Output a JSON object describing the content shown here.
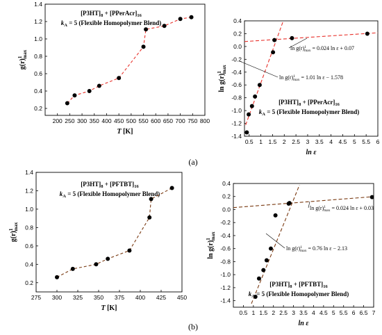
{
  "captions": [
    "(a)",
    "(b)"
  ],
  "chart_data": [
    {
      "type": "line",
      "title_lines": [
        {
          "text": "[P3HT]",
          "sub": "8",
          "text2": " + [PPerAcr]",
          "sub2": "16"
        },
        {
          "kvar": "k",
          "ksub": "A",
          "text": " = 5 (Flexible Homopolymer Blend)"
        }
      ],
      "xlabel": {
        "main": "T",
        "unit": " [K]"
      },
      "ylabel": {
        "main": "g(r)",
        "sup": "1",
        "sub": "max"
      },
      "xlim": [
        150,
        800
      ],
      "ylim": [
        0.12,
        1.4
      ],
      "xticks": [
        200,
        250,
        300,
        350,
        400,
        450,
        500,
        550,
        600,
        650,
        700,
        750,
        800
      ],
      "yticks": [
        0.2,
        0.4,
        0.6,
        0.8,
        1.0,
        1.2,
        1.4
      ],
      "ytick_labels": [
        "0.2",
        "0.4",
        "0.6",
        "0.8",
        "1.0",
        "1.2",
        "1.4"
      ],
      "series": [
        {
          "x": [
            240,
            270,
            330,
            370,
            450,
            550,
            560,
            635,
            700,
            745
          ],
          "y": [
            0.26,
            0.35,
            0.4,
            0.46,
            0.55,
            0.91,
            1.11,
            1.15,
            1.23,
            1.25
          ]
        }
      ],
      "line_color": "#e8302a",
      "marker_color": "#000000"
    },
    {
      "type": "scatter",
      "title_lines": [
        {
          "text": "[P3HT]",
          "sub": "8",
          "text2": " + [PPerAcr]",
          "sub2": "16"
        },
        {
          "kvar": "k",
          "ksub": "A",
          "text": " = 5 (Flexible Homopolymer Blend)"
        }
      ],
      "xlabel": {
        "main": "ln ε",
        "unit": ""
      },
      "ylabel": {
        "main": "ln g(r)",
        "sup": "1",
        "sub": "max"
      },
      "xlim": [
        0.3,
        6.0
      ],
      "ylim": [
        -1.4,
        0.4
      ],
      "xticks": [
        0.5,
        1.0,
        1.5,
        2.0,
        2.5,
        3.0,
        3.5,
        4.0,
        4.5,
        5.0,
        5.5,
        6.0
      ],
      "yticks": [
        -1.4,
        -1.2,
        -1.0,
        -0.8,
        -0.6,
        -0.4,
        -0.2,
        0.0,
        0.2,
        0.4
      ],
      "ytick_labels": [
        "-1.4",
        "-1.2",
        "-1.0",
        "-0.8",
        "-0.6",
        "-0.4",
        "-0.2",
        "0.0",
        "0.2",
        "0.4"
      ],
      "series": [
        {
          "x": [
            0.4,
            0.48,
            0.62,
            0.75,
            0.95,
            1.52,
            1.58,
            2.33,
            5.55
          ],
          "y": [
            -1.34,
            -1.06,
            -0.93,
            -0.78,
            -0.6,
            -0.09,
            0.1,
            0.13,
            0.2
          ]
        }
      ],
      "fit_lines": [
        {
          "slope": 1.01,
          "intercept": -1.578,
          "x_range": [
            0.35,
            1.98
          ],
          "label": {
            "pre": "ln g(r)",
            "sup": "1",
            "sub": "max",
            "post": " = 1.01 ln ε − 1.578"
          }
        },
        {
          "slope": 0.024,
          "intercept": 0.07,
          "x_range": [
            0.3,
            6.0
          ],
          "label": {
            "pre": "ln g(r)",
            "sup": "1",
            "sub": "max",
            "post": " = 0.024 ln ε + 0.07"
          }
        }
      ],
      "line_color": "#e8302a",
      "marker_color": "#000000"
    },
    {
      "type": "line",
      "title_lines": [
        {
          "text": "[P3HT]",
          "sub": "8",
          "text2": " + [PFTBT]",
          "sub2": "16"
        },
        {
          "kvar": "k",
          "ksub": "A",
          "text": " = 5 (Flexible Homopolymer Blend)"
        }
      ],
      "xlabel": {
        "main": "T",
        "unit": " [K]"
      },
      "ylabel": {
        "main": "g(r)",
        "sup": "1",
        "sub": "max"
      },
      "xlim": [
        275,
        450
      ],
      "ylim": [
        0.1,
        1.4
      ],
      "xticks": [
        275,
        300,
        325,
        350,
        375,
        400,
        425,
        450
      ],
      "yticks": [
        0.2,
        0.4,
        0.6,
        0.8,
        1.0,
        1.2,
        1.4
      ],
      "ytick_labels": [
        "0.2",
        "0.4",
        "0.6",
        "0.8",
        "1.0",
        "1.2",
        "1.4"
      ],
      "series": [
        {
          "x": [
            300,
            319,
            347,
            361,
            387,
            411,
            413,
            438
          ],
          "y": [
            0.26,
            0.35,
            0.4,
            0.46,
            0.55,
            0.91,
            1.11,
            1.23
          ]
        }
      ],
      "line_color": "#7a3a12",
      "marker_color": "#000000"
    },
    {
      "type": "scatter",
      "title_lines": [
        {
          "text": "[P3HT]",
          "sub": "8",
          "text2": " + [PFTBT]",
          "sub2": "16"
        },
        {
          "kvar": "k",
          "ksub": "A",
          "text": " = 5 (Flexible Homopolymer Blend)"
        }
      ],
      "xlabel": {
        "main": "ln ε",
        "unit": ""
      },
      "ylabel": {
        "main": "ln g(r)",
        "sup": "1",
        "sub": "max"
      },
      "xlim": [
        0.0,
        7.0
      ],
      "ylim": [
        -1.5,
        0.4
      ],
      "xticks": [
        0.5,
        1.0,
        1.5,
        2.0,
        2.5,
        3.0,
        3.5,
        4.0,
        4.5,
        5.0,
        5.5,
        6.0,
        6.5,
        7.0
      ],
      "yticks": [
        -1.4,
        -1.2,
        -1.0,
        -0.8,
        -0.6,
        -0.4,
        -0.2,
        0.0,
        0.2,
        0.4
      ],
      "ytick_labels": [
        "-1.4",
        "-1.2",
        "-1.0",
        "-0.8",
        "-0.6",
        "-0.4",
        "-0.2",
        "0.0",
        "0.2",
        "0.4"
      ],
      "series": [
        {
          "x": [
            1.1,
            1.28,
            1.5,
            1.66,
            1.87,
            2.1,
            2.76,
            2.8,
            6.92
          ],
          "y": [
            -1.34,
            -1.06,
            -0.93,
            -0.78,
            -0.6,
            -0.09,
            0.09,
            0.1,
            0.19
          ]
        }
      ],
      "fit_lines": [
        {
          "slope": 0.76,
          "intercept": -2.13,
          "x_range": [
            0.9,
            3.3
          ],
          "label": {
            "pre": "ln g(r)",
            "sup": "1",
            "sub": "max",
            "post": " = 0.76 ln ε − 2.13"
          }
        },
        {
          "slope": 0.024,
          "intercept": 0.03,
          "x_range": [
            0.0,
            7.0
          ],
          "label": {
            "pre": "ln g(r)",
            "sup": "1",
            "sub": "max",
            "post": " = 0.024 ln ε + 0.03"
          }
        }
      ],
      "line_color": "#7a3a12",
      "marker_color": "#000000"
    }
  ]
}
